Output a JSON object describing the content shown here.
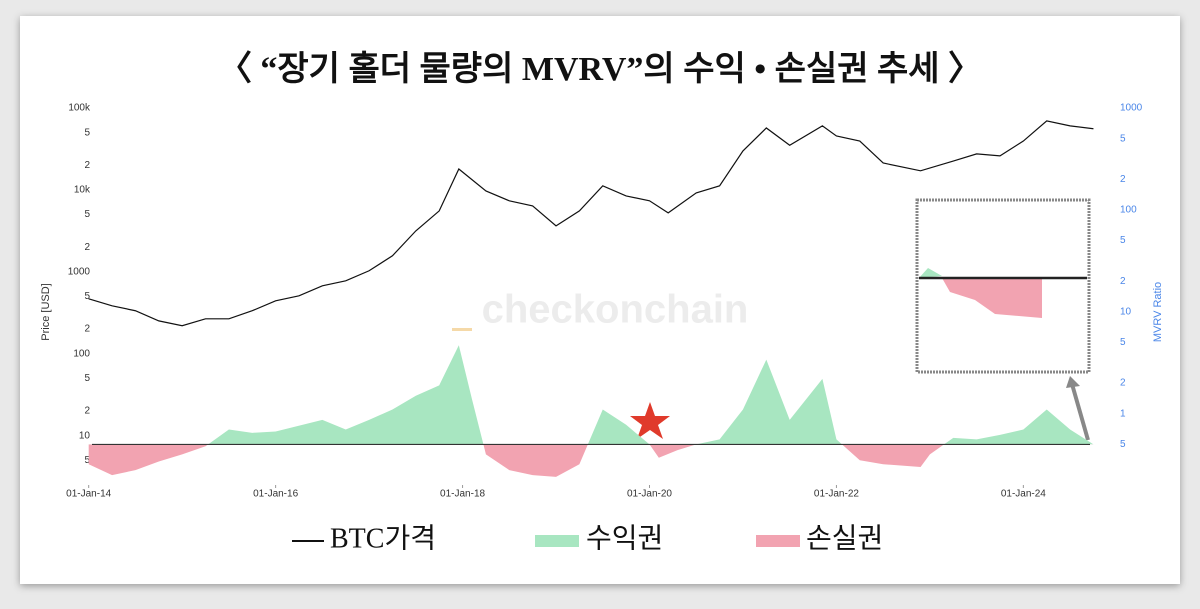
{
  "chart_data": {
    "type": "line",
    "title": "〈 “장기 홀더 물량의 MVRV”의 수익 • 손실권 추세 〉",
    "watermark": "checkonchain",
    "y_label": "Price [USD]",
    "y2_label": "MVRV Ratio",
    "log_scale": true,
    "xlim": [
      2013.8,
      2024.82
    ],
    "xticks": [
      {
        "value": 2014,
        "label": "01-Jan-14"
      },
      {
        "value": 2016,
        "label": "01-Jan-16"
      },
      {
        "value": 2018,
        "label": "01-Jan-18"
      },
      {
        "value": 2020,
        "label": "01-Jan-20"
      },
      {
        "value": 2022,
        "label": "01-Jan-22"
      },
      {
        "value": 2024,
        "label": "01-Jan-24"
      }
    ],
    "ylim": [
      2.5,
      144000
    ],
    "yticks": [
      {
        "value": 100000,
        "label": "100k"
      },
      {
        "value": 50000,
        "label": "5"
      },
      {
        "value": 20000,
        "label": "2"
      },
      {
        "value": 10000,
        "label": "10k"
      },
      {
        "value": 5000,
        "label": "5"
      },
      {
        "value": 2000,
        "label": "2"
      },
      1000,
      {
        "value": 500,
        "label": "5"
      },
      {
        "value": 200,
        "label": "2"
      },
      100,
      {
        "value": 50,
        "label": "5"
      },
      {
        "value": 20,
        "label": "2"
      },
      10,
      5
    ],
    "y2lim": [
      0.2,
      1340
    ],
    "y2ticks": [
      1000,
      {
        "value": 500,
        "label": "5"
      },
      {
        "value": 200,
        "label": "2"
      },
      100,
      {
        "value": 50,
        "label": "5"
      },
      {
        "value": 20,
        "label": "2"
      },
      10,
      {
        "value": 5,
        "label": "5"
      },
      {
        "value": 2,
        "label": "2"
      },
      1,
      {
        "value": 0.5,
        "label": "5"
      }
    ],
    "baseline": 0.5,
    "series": [
      {
        "name": "BTC가격",
        "color": "#111111",
        "x": [
          2014.0,
          2014.25,
          2014.5,
          2014.75,
          2015.0,
          2015.25,
          2015.5,
          2015.75,
          2016.0,
          2016.25,
          2016.5,
          2016.75,
          2017.0,
          2017.25,
          2017.5,
          2017.75,
          2017.96,
          2018.25,
          2018.5,
          2018.75,
          2019.0,
          2019.25,
          2019.5,
          2019.75,
          2020.0,
          2020.2,
          2020.5,
          2020.75,
          2021.0,
          2021.25,
          2021.5,
          2021.85,
          2022.0,
          2022.25,
          2022.5,
          2022.9,
          2023.25,
          2023.5,
          2023.75,
          2024.0,
          2024.25,
          2024.5,
          2024.75
        ],
        "values": [
          469,
          385,
          335,
          252,
          220,
          267,
          267,
          335,
          443,
          510,
          675,
          777,
          1030,
          1570,
          3160,
          5540,
          18000,
          9700,
          7360,
          6380,
          3640,
          5540,
          11200,
          8440,
          7360,
          5240,
          9180,
          11200,
          29900,
          57000,
          35100,
          60500,
          45500,
          39500,
          21300,
          17100,
          22500,
          27500,
          26000,
          39500,
          69600,
          60500,
          55800
        ]
      },
      {
        "name": "MVRV",
        "axis": "y2",
        "fill_above": {
          "name": "수익권",
          "color": "#a8e6c1"
        },
        "fill_below": {
          "name": "손실권",
          "color": "#f2a3b1"
        },
        "x": [
          2014.0,
          2014.25,
          2014.5,
          2014.75,
          2015.0,
          2015.25,
          2015.5,
          2015.75,
          2016.0,
          2016.5,
          2016.75,
          2017.0,
          2017.25,
          2017.5,
          2017.75,
          2017.96,
          2018.1,
          2018.25,
          2018.5,
          2018.75,
          2019.0,
          2019.25,
          2019.5,
          2019.75,
          2020.0,
          2020.1,
          2020.3,
          2020.5,
          2020.75,
          2021.0,
          2021.25,
          2021.5,
          2021.85,
          2022.0,
          2022.25,
          2022.5,
          2022.9,
          2023.0,
          2023.25,
          2023.5,
          2023.75,
          2024.0,
          2024.25,
          2024.5,
          2024.75
        ],
        "values": [
          0.32,
          0.25,
          0.28,
          0.34,
          0.4,
          0.48,
          0.7,
          0.65,
          0.67,
          0.87,
          0.7,
          0.87,
          1.1,
          1.5,
          1.9,
          4.7,
          1.4,
          0.4,
          0.28,
          0.25,
          0.24,
          0.32,
          1.1,
          0.78,
          0.5,
          0.37,
          0.44,
          0.5,
          0.56,
          1.1,
          3.4,
          0.87,
          2.2,
          0.56,
          0.35,
          0.32,
          0.3,
          0.4,
          0.58,
          0.56,
          0.62,
          0.7,
          1.1,
          0.7,
          0.5
        ]
      }
    ]
  }
}
